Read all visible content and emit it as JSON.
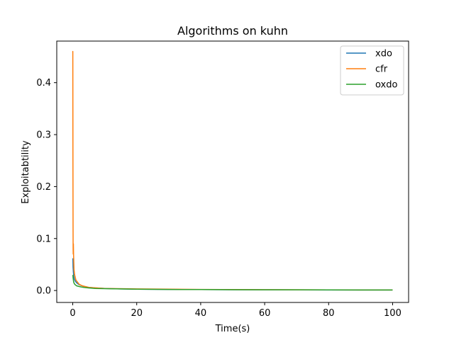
{
  "chart_data": {
    "type": "line",
    "title": "Algorithms on kuhn",
    "xlabel": "Time(s)",
    "ylabel": "Exploitabtility",
    "xlim": [
      -5,
      105
    ],
    "ylim": [
      -0.023,
      0.48
    ],
    "x_ticks": [
      0,
      20,
      40,
      60,
      80,
      100
    ],
    "y_ticks": [
      0.0,
      0.1,
      0.2,
      0.3,
      0.4
    ],
    "x_tick_labels": [
      "0",
      "20",
      "40",
      "60",
      "80",
      "100"
    ],
    "y_tick_labels": [
      "0.0",
      "0.1",
      "0.2",
      "0.3",
      "0.4"
    ],
    "grid": false,
    "legend_position": "top-right",
    "series": [
      {
        "name": "xdo",
        "color": "#1f77b4",
        "x": [
          0.05,
          0.1,
          0.2,
          0.3,
          0.5,
          0.8,
          1.2,
          1.8,
          2.5,
          3.5,
          5,
          7,
          10,
          15,
          20,
          30,
          40,
          50,
          60,
          70,
          80,
          90,
          100
        ],
        "y": [
          0.062,
          0.045,
          0.035,
          0.028,
          0.022,
          0.018,
          0.015,
          0.012,
          0.01,
          0.008,
          0.006,
          0.005,
          0.004,
          0.003,
          0.0025,
          0.002,
          0.0018,
          0.0015,
          0.0013,
          0.0012,
          0.0011,
          0.001,
          0.001
        ]
      },
      {
        "name": "cfr",
        "color": "#ff7f0e",
        "x": [
          0.0,
          0.02,
          0.04,
          0.06,
          0.08,
          0.1,
          0.12,
          0.15,
          0.2,
          0.25,
          0.3,
          0.4,
          0.6,
          1,
          2,
          3,
          5,
          10,
          20,
          40,
          60,
          80,
          100
        ],
        "y": [
          0.458,
          0.46,
          0.35,
          0.25,
          0.18,
          0.12,
          0.08,
          0.07,
          0.09,
          0.07,
          0.06,
          0.04,
          0.03,
          0.02,
          0.012,
          0.009,
          0.006,
          0.004,
          0.003,
          0.002,
          0.0015,
          0.0012,
          0.001
        ]
      },
      {
        "name": "oxdo",
        "color": "#2ca02c",
        "x": [
          0.05,
          0.1,
          0.2,
          0.3,
          0.5,
          0.8,
          1.2,
          1.8,
          2.5,
          3.5,
          5,
          7,
          10,
          15,
          20,
          30,
          40,
          50,
          60,
          70,
          80,
          90,
          100
        ],
        "y": [
          0.03,
          0.025,
          0.02,
          0.016,
          0.013,
          0.011,
          0.009,
          0.008,
          0.007,
          0.006,
          0.005,
          0.004,
          0.0035,
          0.003,
          0.0025,
          0.002,
          0.0018,
          0.0016,
          0.0014,
          0.0013,
          0.0012,
          0.0011,
          0.001
        ]
      }
    ]
  }
}
